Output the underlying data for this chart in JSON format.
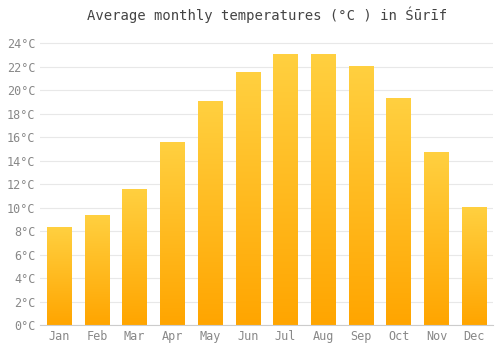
{
  "title": "Average monthly temperatures (°C ) in Śūrīf",
  "months": [
    "Jan",
    "Feb",
    "Mar",
    "Apr",
    "May",
    "Jun",
    "Jul",
    "Aug",
    "Sep",
    "Oct",
    "Nov",
    "Dec"
  ],
  "values": [
    8.3,
    9.3,
    11.5,
    15.5,
    19.0,
    21.5,
    23.0,
    23.0,
    22.0,
    19.3,
    14.7,
    10.0
  ],
  "bar_color_top": "#FFD966",
  "bar_color_bottom": "#FFA500",
  "background_color": "#FFFFFF",
  "grid_color": "#E8E8E8",
  "ylim": [
    0,
    25
  ],
  "ytick_step": 2,
  "title_fontsize": 10,
  "tick_fontsize": 8.5
}
